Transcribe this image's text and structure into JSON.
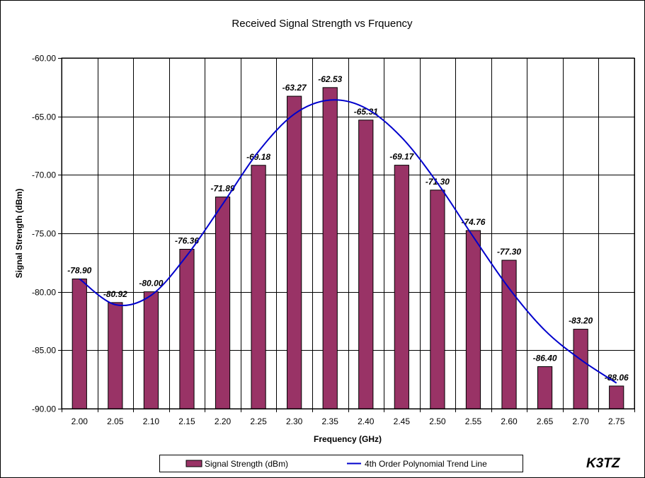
{
  "chart_data": {
    "type": "bar",
    "title": "Received Signal Strength vs Frquency",
    "xlabel": "Frequency (GHz)",
    "ylabel": "Signal Strength (dBm)",
    "ylim": [
      -90,
      -60
    ],
    "yticks": [
      "-60.00",
      "-65.00",
      "-70.00",
      "-75.00",
      "-80.00",
      "-85.00",
      "-90.00"
    ],
    "ytick_values": [
      -60,
      -65,
      -70,
      -75,
      -80,
      -85,
      -90
    ],
    "categories": [
      "2.00",
      "2.05",
      "2.10",
      "2.15",
      "2.20",
      "2.25",
      "2.30",
      "2.35",
      "2.40",
      "2.45",
      "2.50",
      "2.55",
      "2.60",
      "2.65",
      "2.70",
      "2.75"
    ],
    "series": [
      {
        "name": "Signal Strength (dBm)",
        "type": "bar",
        "color": "#993366",
        "values": [
          -78.9,
          -80.92,
          -80.0,
          -76.36,
          -71.89,
          -69.18,
          -63.27,
          -62.53,
          -65.31,
          -69.17,
          -71.3,
          -74.76,
          -77.3,
          -86.4,
          -83.2,
          -88.06
        ],
        "labels": [
          "-78.90",
          "-80.92",
          "-80.00",
          "-76.36",
          "-71.89",
          "-69.18",
          "-63.27",
          "-62.53",
          "-65.31",
          "-69.17",
          "-71.30",
          "-74.76",
          "-77.30",
          "-86.40",
          "-83.20",
          "-88.06"
        ]
      },
      {
        "name": "4th Order Polynomial Trend Line",
        "type": "line",
        "color": "#0000cc",
        "values": [
          -78.9,
          -81.1,
          -80.3,
          -76.9,
          -72.5,
          -68.0,
          -64.8,
          -63.6,
          -64.3,
          -66.8,
          -70.7,
          -75.3,
          -79.7,
          -83.3,
          -85.8,
          -87.8
        ]
      }
    ],
    "grid": true,
    "legend": "bottom-center"
  },
  "watermark": "K3TZ"
}
